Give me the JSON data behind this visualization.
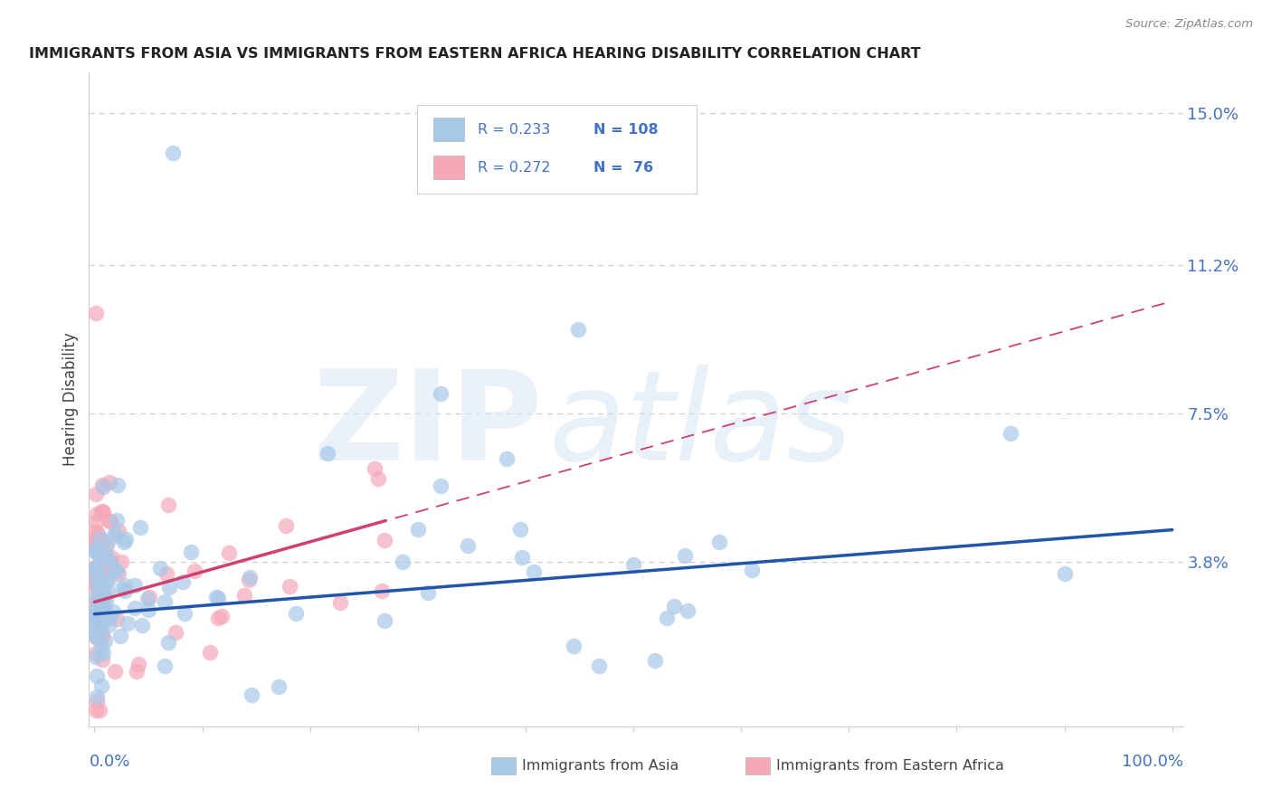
{
  "title": "IMMIGRANTS FROM ASIA VS IMMIGRANTS FROM EASTERN AFRICA HEARING DISABILITY CORRELATION CHART",
  "source": "Source: ZipAtlas.com",
  "ylabel": "Hearing Disability",
  "ylim": [
    -0.003,
    0.16
  ],
  "xlim": [
    -0.005,
    1.01
  ],
  "ytick_values": [
    0.038,
    0.075,
    0.112,
    0.15
  ],
  "ytick_labels": [
    "3.8%",
    "7.5%",
    "11.2%",
    "15.0%"
  ],
  "grid_color": "#d0d0d0",
  "background_color": "#ffffff",
  "asia_color": "#a8c8e8",
  "asia_line_color": "#2255aa",
  "africa_color": "#f5a8b8",
  "africa_line_color": "#d04070",
  "legend_r_asia": "0.233",
  "legend_n_asia": "108",
  "legend_r_africa": "0.272",
  "legend_n_africa": "76",
  "legend_text_color": "#4472c4",
  "title_color": "#222222",
  "source_color": "#888888",
  "ylabel_color": "#444444"
}
